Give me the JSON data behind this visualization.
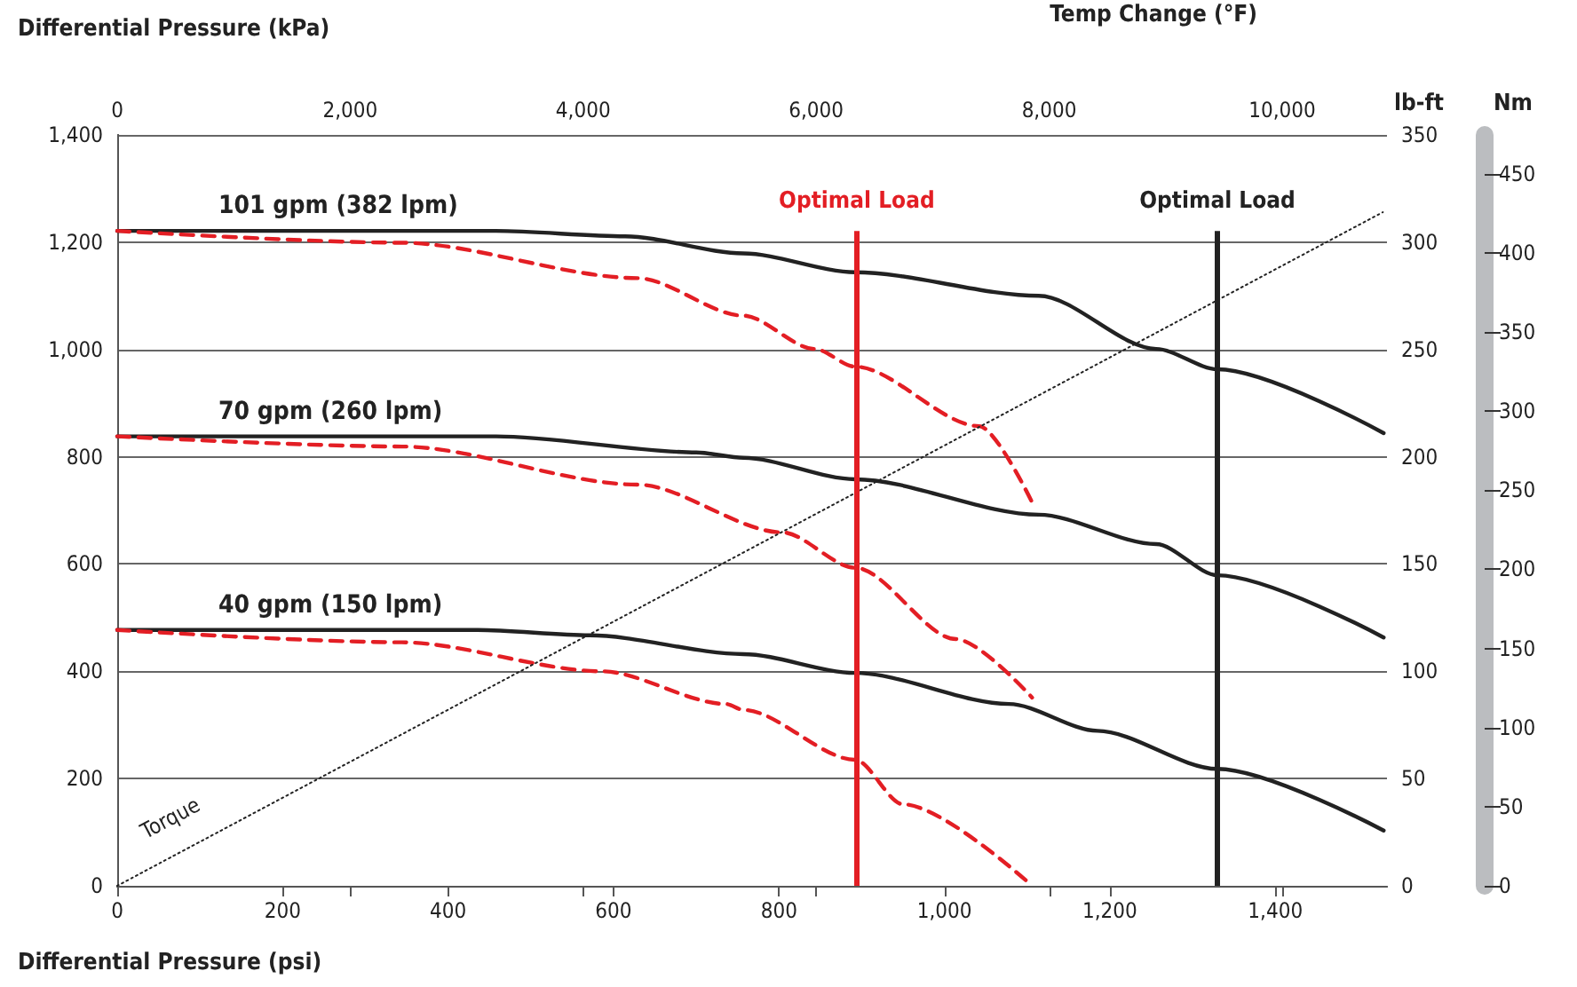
{
  "chart_data": {
    "type": "line",
    "xlabel": "Differential Pressure (psi)",
    "x2label": "Differential Pressure (kPa)",
    "y2label": "lb-ft",
    "y3label": "Nm",
    "annotations": [
      "Temp Change (°F)"
    ],
    "xlim": [
      0,
      1535
    ],
    "xticks": [
      0,
      200,
      400,
      600,
      800,
      {
        "value": 1000,
        "label": "1,000"
      },
      {
        "value": 1200,
        "label": "1,200"
      },
      {
        "value": 1400,
        "label": "1,400"
      }
    ],
    "x2lim": [
      0,
      10900
    ],
    "x2ticks": [
      0,
      {
        "value": 2000,
        "label": "2,000"
      },
      {
        "value": 4000,
        "label": "4,000"
      },
      {
        "value": 6000,
        "label": "6,000"
      },
      {
        "value": 8000,
        "label": "8,000"
      },
      {
        "value": 10000,
        "label": "10,000"
      }
    ],
    "ylim": [
      0,
      1400
    ],
    "yticks": [
      0,
      200,
      400,
      600,
      800,
      {
        "value": 1000,
        "label": "1,000"
      },
      {
        "value": 1200,
        "label": "1,200"
      },
      {
        "value": 1400,
        "label": "1,400"
      }
    ],
    "y2lim": [
      0,
      350
    ],
    "y2ticks": [
      0,
      50,
      100,
      150,
      200,
      250,
      300,
      350
    ],
    "y3lim": [
      0,
      474.5
    ],
    "y3ticks": [
      0,
      50,
      100,
      150,
      200,
      250,
      300,
      350,
      400,
      450
    ],
    "grid": "y",
    "series": [
      {
        "name": "101 gpm (382 lpm)",
        "color": "#222222",
        "line_style": "solid",
        "x": [
          0,
          458,
          614,
          757,
          892,
          1114,
          1256,
          1330,
          1531
        ],
        "values": [
          1221,
          1221,
          1211,
          1179,
          1144,
          1100,
          1001,
          963,
          844
        ]
      },
      {
        "color": "#e31e24",
        "line_style": "dashed",
        "x": [
          0,
          344,
          629,
          757,
          843,
          892,
          1042,
          1106
        ],
        "values": [
          1221,
          1199,
          1133,
          1063,
          1001,
          968,
          857,
          715
        ]
      },
      {
        "name": "70 gpm (260 lpm)",
        "color": "#222222",
        "line_style": "solid",
        "x": [
          0,
          458,
          700,
          757,
          892,
          1114,
          1256,
          1330,
          1531
        ],
        "values": [
          838,
          838,
          808,
          798,
          758,
          692,
          637,
          579,
          463
        ]
      },
      {
        "color": "#e31e24",
        "line_style": "dashed",
        "x": [
          0,
          344,
          629,
          804,
          892,
          1014,
          1106
        ],
        "values": [
          838,
          819,
          748,
          659,
          593,
          460,
          351
        ]
      },
      {
        "name": "40 gpm (150 lpm)",
        "color": "#222222",
        "line_style": "solid",
        "x": [
          0,
          436,
          571,
          757,
          892,
          1078,
          1185,
          1330,
          1531
        ],
        "values": [
          477,
          477,
          467,
          432,
          397,
          339,
          289,
          218,
          103
        ]
      },
      {
        "color": "#e31e24",
        "line_style": "dashed",
        "x": [
          0,
          344,
          586,
          736,
          757,
          892,
          950,
          1106
        ],
        "values": [
          477,
          454,
          400,
          339,
          328,
          235,
          152,
          0
        ]
      },
      {
        "name": "Torque",
        "color": "#222222",
        "line_style": "dotted",
        "axis": "y2",
        "x": [
          0,
          1530
        ],
        "values": [
          0,
          314
        ]
      }
    ],
    "ref_lines": [
      {
        "axis": "x",
        "value": 894,
        "label": "Optimal Load",
        "color": "#e31e24"
      },
      {
        "axis": "x",
        "value": 1330,
        "label": "Optimal Load",
        "color": "#222222"
      }
    ]
  }
}
